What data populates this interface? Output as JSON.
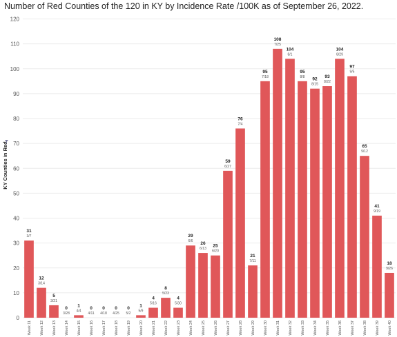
{
  "chart_data": {
    "type": "bar",
    "title": "Number of Red Counties of the 120 in KY by Incidence Rate /100K as of September 26, 2022.",
    "ylabel": "KY Counties in Red",
    "xlabel": "",
    "ylim": [
      0,
      120
    ],
    "yticks": [
      0,
      10,
      20,
      30,
      40,
      50,
      60,
      70,
      80,
      90,
      100,
      110,
      120
    ],
    "grid": true,
    "colors": {
      "bar": "#e05759"
    },
    "categories": [
      "Week 11",
      "Week 12",
      "Week 13",
      "Week 14",
      "Week 15",
      "Week 16",
      "Week 17",
      "Week 18",
      "Week 19",
      "Week 20",
      "Week 21",
      "Week 22",
      "Week 23",
      "Week 24",
      "Week 25",
      "Week 26",
      "Week 27",
      "Week 28",
      "Week 29",
      "Week 30",
      "Week 31",
      "Week 32",
      "Week 33",
      "Week 34",
      "Week 35",
      "Week 36",
      "Week 37",
      "Week 38",
      "Week 39",
      "Week 40"
    ],
    "values": [
      31,
      12,
      5,
      0,
      1,
      0,
      0,
      0,
      0,
      1,
      4,
      8,
      4,
      29,
      26,
      25,
      59,
      76,
      21,
      95,
      108,
      104,
      95,
      92,
      93,
      104,
      97,
      65,
      41,
      18
    ],
    "dates": [
      "3/7",
      "3/14",
      "3/21",
      "3/28",
      "4/4",
      "4/11",
      "4/18",
      "4/25",
      "5/2",
      "5/9",
      "5/16",
      "5/23",
      "5/30",
      "6/6",
      "6/13",
      "6/20",
      "6/27",
      "7/4",
      "7/11",
      "7/18",
      "7/25",
      "8/1",
      "8/8",
      "8/15",
      "8/22",
      "8/29",
      "9/5",
      "9/12",
      "9/19",
      "9/26"
    ]
  }
}
